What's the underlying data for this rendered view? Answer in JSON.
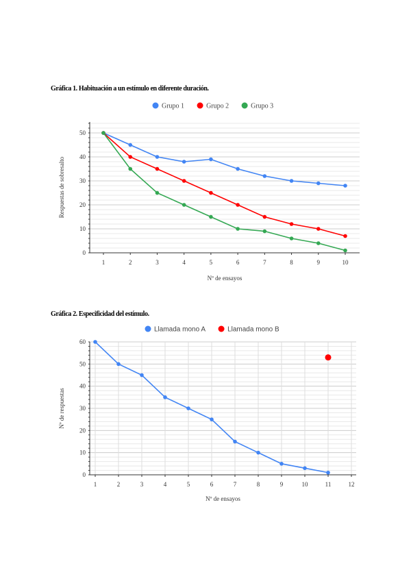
{
  "chart_data": [
    {
      "type": "line",
      "title": "Gráfica 1. Habituación a un estímulo en diferente duración.",
      "xlabel": "Nº de ensayos",
      "ylabel": "Respuestas de sobresalto",
      "x": [
        1,
        2,
        3,
        4,
        5,
        6,
        7,
        8,
        9,
        10
      ],
      "xlim": [
        1,
        10
      ],
      "ylim": [
        0,
        55
      ],
      "yticks": [
        0,
        10,
        20,
        30,
        40,
        50
      ],
      "grid": true,
      "legend": "top",
      "series": [
        {
          "name": "Grupo 1",
          "color": "#4285f4",
          "values": [
            50,
            45,
            40,
            38,
            39,
            35,
            32,
            30,
            29,
            28
          ]
        },
        {
          "name": "Grupo 2",
          "color": "#ff0000",
          "values": [
            50,
            40,
            35,
            30,
            25,
            20,
            15,
            12,
            10,
            7
          ]
        },
        {
          "name": "Grupo 3",
          "color": "#34a853",
          "values": [
            50,
            35,
            25,
            20,
            15,
            10,
            9,
            6,
            4,
            1
          ]
        }
      ]
    },
    {
      "type": "line",
      "title": "Gráfica 2. Especificidad del estímulo.",
      "xlabel": "Nº de ensayos",
      "ylabel": "Nº de respuestas",
      "xticks": [
        1,
        2,
        3,
        4,
        5,
        6,
        7,
        8,
        9,
        10,
        11,
        12
      ],
      "xlim": [
        1,
        12
      ],
      "ylim": [
        0,
        60
      ],
      "yticks": [
        0,
        10,
        20,
        30,
        40,
        50,
        60
      ],
      "grid": true,
      "legend": "top",
      "series": [
        {
          "name": "Llamada mono A",
          "color": "#4285f4",
          "x": [
            1,
            2,
            3,
            4,
            5,
            6,
            7,
            8,
            9,
            10,
            11
          ],
          "values": [
            60,
            50,
            45,
            35,
            30,
            25,
            15,
            10,
            5,
            3,
            1
          ]
        },
        {
          "name": "Llamada mono B",
          "color": "#ff0000",
          "x": [
            11
          ],
          "values": [
            53
          ]
        }
      ]
    }
  ]
}
